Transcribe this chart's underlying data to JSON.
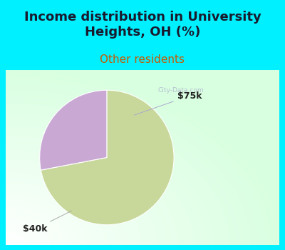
{
  "title": "Income distribution in University\nHeights, OH (%)",
  "subtitle": "Other residents",
  "title_color": "#1a1a2e",
  "subtitle_color": "#c85a00",
  "title_fontsize": 13,
  "subtitle_fontsize": 11,
  "background_color": "#00f0ff",
  "chart_bg_color": "#e8f5ec",
  "slices": [
    72.0,
    28.0
  ],
  "slice_colors": [
    "#c8d89a",
    "#c9a8d4"
  ],
  "slice_labels": [
    "$40k",
    "$75k"
  ],
  "label_fontsize": 9,
  "label_color": "#222222",
  "watermark": "City-Data.com"
}
